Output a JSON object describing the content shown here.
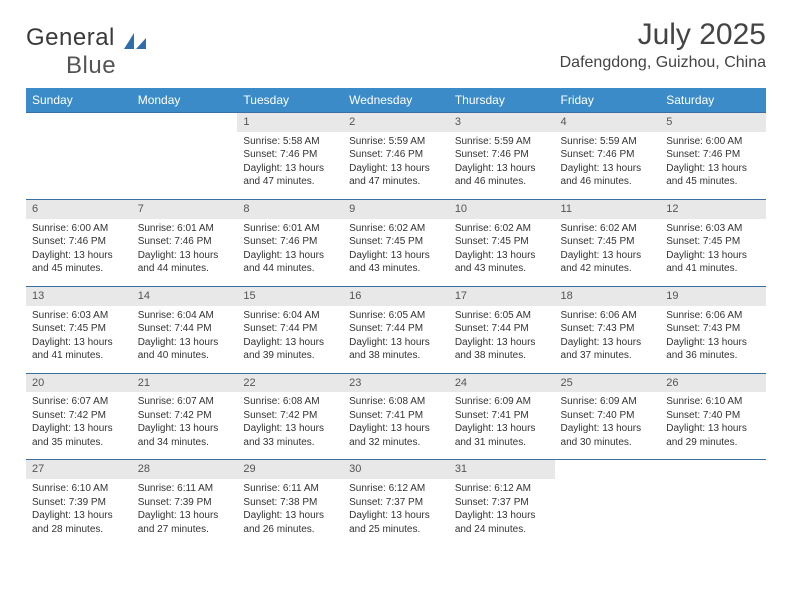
{
  "brand": {
    "part1": "General",
    "part2": "Blue",
    "logo_color": "#2e6fab"
  },
  "title": "July 2025",
  "location": "Dafengdong, Guizhou, China",
  "colors": {
    "header_bg": "#3b8bc9",
    "header_text": "#ffffff",
    "row_border": "#3b6fa0",
    "daynum_bg": "#e8e8e8",
    "body_text": "#333333"
  },
  "weekdays": [
    "Sunday",
    "Monday",
    "Tuesday",
    "Wednesday",
    "Thursday",
    "Friday",
    "Saturday"
  ],
  "weeks": [
    [
      {
        "n": "",
        "sr": "",
        "ss": "",
        "dl": ""
      },
      {
        "n": "",
        "sr": "",
        "ss": "",
        "dl": ""
      },
      {
        "n": "1",
        "sr": "5:58 AM",
        "ss": "7:46 PM",
        "dl": "13 hours and 47 minutes."
      },
      {
        "n": "2",
        "sr": "5:59 AM",
        "ss": "7:46 PM",
        "dl": "13 hours and 47 minutes."
      },
      {
        "n": "3",
        "sr": "5:59 AM",
        "ss": "7:46 PM",
        "dl": "13 hours and 46 minutes."
      },
      {
        "n": "4",
        "sr": "5:59 AM",
        "ss": "7:46 PM",
        "dl": "13 hours and 46 minutes."
      },
      {
        "n": "5",
        "sr": "6:00 AM",
        "ss": "7:46 PM",
        "dl": "13 hours and 45 minutes."
      }
    ],
    [
      {
        "n": "6",
        "sr": "6:00 AM",
        "ss": "7:46 PM",
        "dl": "13 hours and 45 minutes."
      },
      {
        "n": "7",
        "sr": "6:01 AM",
        "ss": "7:46 PM",
        "dl": "13 hours and 44 minutes."
      },
      {
        "n": "8",
        "sr": "6:01 AM",
        "ss": "7:46 PM",
        "dl": "13 hours and 44 minutes."
      },
      {
        "n": "9",
        "sr": "6:02 AM",
        "ss": "7:45 PM",
        "dl": "13 hours and 43 minutes."
      },
      {
        "n": "10",
        "sr": "6:02 AM",
        "ss": "7:45 PM",
        "dl": "13 hours and 43 minutes."
      },
      {
        "n": "11",
        "sr": "6:02 AM",
        "ss": "7:45 PM",
        "dl": "13 hours and 42 minutes."
      },
      {
        "n": "12",
        "sr": "6:03 AM",
        "ss": "7:45 PM",
        "dl": "13 hours and 41 minutes."
      }
    ],
    [
      {
        "n": "13",
        "sr": "6:03 AM",
        "ss": "7:45 PM",
        "dl": "13 hours and 41 minutes."
      },
      {
        "n": "14",
        "sr": "6:04 AM",
        "ss": "7:44 PM",
        "dl": "13 hours and 40 minutes."
      },
      {
        "n": "15",
        "sr": "6:04 AM",
        "ss": "7:44 PM",
        "dl": "13 hours and 39 minutes."
      },
      {
        "n": "16",
        "sr": "6:05 AM",
        "ss": "7:44 PM",
        "dl": "13 hours and 38 minutes."
      },
      {
        "n": "17",
        "sr": "6:05 AM",
        "ss": "7:44 PM",
        "dl": "13 hours and 38 minutes."
      },
      {
        "n": "18",
        "sr": "6:06 AM",
        "ss": "7:43 PM",
        "dl": "13 hours and 37 minutes."
      },
      {
        "n": "19",
        "sr": "6:06 AM",
        "ss": "7:43 PM",
        "dl": "13 hours and 36 minutes."
      }
    ],
    [
      {
        "n": "20",
        "sr": "6:07 AM",
        "ss": "7:42 PM",
        "dl": "13 hours and 35 minutes."
      },
      {
        "n": "21",
        "sr": "6:07 AM",
        "ss": "7:42 PM",
        "dl": "13 hours and 34 minutes."
      },
      {
        "n": "22",
        "sr": "6:08 AM",
        "ss": "7:42 PM",
        "dl": "13 hours and 33 minutes."
      },
      {
        "n": "23",
        "sr": "6:08 AM",
        "ss": "7:41 PM",
        "dl": "13 hours and 32 minutes."
      },
      {
        "n": "24",
        "sr": "6:09 AM",
        "ss": "7:41 PM",
        "dl": "13 hours and 31 minutes."
      },
      {
        "n": "25",
        "sr": "6:09 AM",
        "ss": "7:40 PM",
        "dl": "13 hours and 30 minutes."
      },
      {
        "n": "26",
        "sr": "6:10 AM",
        "ss": "7:40 PM",
        "dl": "13 hours and 29 minutes."
      }
    ],
    [
      {
        "n": "27",
        "sr": "6:10 AM",
        "ss": "7:39 PM",
        "dl": "13 hours and 28 minutes."
      },
      {
        "n": "28",
        "sr": "6:11 AM",
        "ss": "7:39 PM",
        "dl": "13 hours and 27 minutes."
      },
      {
        "n": "29",
        "sr": "6:11 AM",
        "ss": "7:38 PM",
        "dl": "13 hours and 26 minutes."
      },
      {
        "n": "30",
        "sr": "6:12 AM",
        "ss": "7:37 PM",
        "dl": "13 hours and 25 minutes."
      },
      {
        "n": "31",
        "sr": "6:12 AM",
        "ss": "7:37 PM",
        "dl": "13 hours and 24 minutes."
      },
      {
        "n": "",
        "sr": "",
        "ss": "",
        "dl": ""
      },
      {
        "n": "",
        "sr": "",
        "ss": "",
        "dl": ""
      }
    ]
  ],
  "labels": {
    "sunrise": "Sunrise:",
    "sunset": "Sunset:",
    "daylight": "Daylight:"
  }
}
